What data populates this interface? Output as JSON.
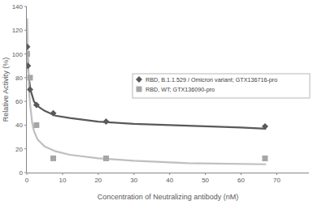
{
  "chart_data": {
    "type": "scatter",
    "x_label": "Concentration of Neutralizing antibody (nM)",
    "y_label": "Relative Activity (%)",
    "xlim": [
      0,
      79
    ],
    "xticks": [
      0,
      10,
      20,
      30,
      40,
      50,
      60,
      70
    ],
    "ylim": [
      0,
      140
    ],
    "yticks": [
      0,
      20,
      40,
      60,
      80,
      100,
      120,
      140
    ],
    "grid": false,
    "legend": "right",
    "series": [
      {
        "name": "RBD, B.1.1.529 / Omicron variant; GTX136716-pro",
        "color": "#595959",
        "marker": "diamond",
        "x": [
          0.1,
          0.3,
          0.9,
          2.7,
          7.4,
          22.2,
          66.7
        ],
        "values": [
          106,
          90,
          70,
          57,
          50,
          43,
          39
        ]
      },
      {
        "name": "RBD, WT; GTX136090-pro",
        "color": "#a6a6a6",
        "marker": "square",
        "x": [
          0.1,
          0.9,
          2.7,
          7.4,
          22.2,
          66.7
        ],
        "values": [
          100,
          80,
          40,
          12,
          12,
          12
        ]
      },
      {
        "type": "line",
        "color": "#595959",
        "line_style": "solid",
        "x": [
          0.2,
          0.5,
          1,
          2,
          3,
          5,
          8,
          12,
          20,
          30,
          40,
          50,
          60,
          67
        ],
        "values": [
          100,
          82,
          70,
          60,
          56,
          52,
          48,
          46,
          43,
          41,
          40,
          39,
          38,
          37
        ]
      },
      {
        "type": "line",
        "color": "#bfbfbf",
        "line_style": "solid",
        "x": [
          0.1,
          0.3,
          0.6,
          1,
          1.5,
          2,
          3,
          5,
          8,
          12,
          20,
          30,
          45,
          67
        ],
        "values": [
          130,
          95,
          70,
          55,
          42,
          35,
          28,
          22,
          18,
          15,
          12,
          10,
          8,
          7
        ]
      }
    ]
  }
}
